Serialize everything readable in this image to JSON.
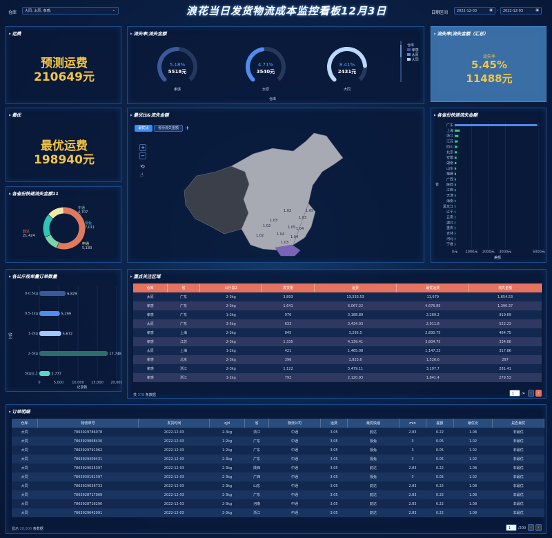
{
  "header": {
    "title": "浪花当日发货物流成本监控看板12月3日",
    "warehouse_label": "仓库",
    "warehouse_value": "大同; 太原; 孝感;",
    "date_label": "日期区间",
    "date_start": "2022-12-03",
    "date_sep": "-",
    "date_end": "2022-12-03"
  },
  "freight": {
    "title": "运费",
    "label": "预测运费",
    "value": "210649元"
  },
  "optimal": {
    "title": "最优",
    "label": "最优运费",
    "value": "198940元"
  },
  "loss": {
    "title": "流失率|流失金额",
    "axis_title": "仓库",
    "legend": {
      "title": "仓库",
      "items": [
        "孝感",
        "太原",
        "大同"
      ]
    },
    "rings": [
      {
        "pct": "5.18%",
        "amount": "5518元",
        "name": "孝感",
        "value": 0.5
      },
      {
        "pct": "4.71%",
        "amount": "3540元",
        "name": "太原",
        "value": 0.46
      },
      {
        "pct": "8.41%",
        "amount": "2431元",
        "name": "大同",
        "value": 0.82
      }
    ]
  },
  "loss_total": {
    "title": "流失率|流失金额（汇总）",
    "label": "流失率",
    "rate": "5.45%",
    "amount": "11488元"
  },
  "map": {
    "title": "最优比&流失金额",
    "tab1": "最优比",
    "tab2": "省份流失金额",
    "tab_add": "+",
    "zoom_in": "+",
    "zoom_out": "−",
    "labels": [
      "1.02",
      "1.03",
      "1.02",
      "1.05",
      "1.04",
      "1.03",
      "1.02",
      "1.04",
      "1.05",
      "1.03",
      "1.04"
    ]
  },
  "province_bar": {
    "title": "各省份快递流失金额",
    "ylabel": "省",
    "xlabel": "差额"
  },
  "donut": {
    "title": "各省份快递流失金额11"
  },
  "weight": {
    "title": "各公斤段单量订单数量",
    "ylabel": "分段",
    "xlabel": "记录数"
  },
  "focus": {
    "title": "重点关注区域",
    "columns": [
      "仓库",
      "省",
      "公斤段2",
      "发货量",
      "运费",
      "最优运费",
      "流失金额"
    ],
    "rows": [
      [
        "太原",
        "广东",
        "2-3kg",
        "3,893",
        "13,333.53",
        "11,679",
        "1,654.53"
      ],
      [
        "孝感",
        "广东",
        "2-3kg",
        "1,641",
        "6,067.22",
        "4,676.85",
        "1,390.37"
      ],
      [
        "孝感",
        "广东",
        "1-2kg",
        "976",
        "3,188.89",
        "2,269.2",
        "919.69"
      ],
      [
        "太原",
        "广东",
        "3-5kg",
        "633",
        "3,434.03",
        "2,911.8",
        "522.23"
      ],
      [
        "孝感",
        "上海",
        "2-3kg",
        "845",
        "3,295.5",
        "2,830.75",
        "464.75"
      ],
      [
        "孝感",
        "江苏",
        "2-3kg",
        "1,335",
        "4,139.41",
        "3,804.75",
        "334.66"
      ],
      [
        "太原",
        "上海",
        "1-2kg",
        "421",
        "1,465.08",
        "1,147.23",
        "317.86"
      ],
      [
        "孝感",
        "北京",
        "2-3kg",
        "396",
        "1,823.6",
        "1,526.6",
        "297"
      ],
      [
        "孝感",
        "浙江",
        "2-3kg",
        "1,122",
        "3,479.11",
        "3,197.7",
        "281.41"
      ],
      [
        "孝感",
        "浙江",
        "1-2kg",
        "792",
        "2,120.93",
        "1,841.4",
        "279.53"
      ]
    ],
    "footer_pre": "共",
    "count": "378",
    "footer_post": "条数据",
    "page": "1",
    "page_total": "/4"
  },
  "orders": {
    "title": "订单明细",
    "columns": [
      "仓库",
      "物流单号",
      "发货时间",
      "qjd",
      "省",
      "物流公司",
      "运费",
      "最优快递",
      "min",
      "差额",
      "最优比",
      "是否最优"
    ],
    "rows": [
      [
        "大同",
        "7863929786078",
        "2022-12-03",
        "2-3kg",
        "浙江",
        "中通",
        "3.05",
        "韵达",
        "2.83",
        "0.22",
        "1.08",
        "非最优"
      ],
      [
        "大同",
        "7863929868430",
        "2022-12-03",
        "1-2kg",
        "广东",
        "中通",
        "3.05",
        "极兔",
        "3",
        "0.05",
        "1.02",
        "非最优"
      ],
      [
        "大同",
        "7863929791062",
        "2022-12-03",
        "1-2kg",
        "广东",
        "中通",
        "3.05",
        "极兔",
        "3",
        "0.05",
        "1.02",
        "非最优"
      ],
      [
        "大同",
        "7863929409431",
        "2022-12-03",
        "2-3kg",
        "广东",
        "中通",
        "3.05",
        "极兔",
        "3",
        "0.05",
        "1.02",
        "非最优"
      ],
      [
        "大同",
        "7863929025397",
        "2022-12-03",
        "2-3kg",
        "陕西",
        "中通",
        "3.05",
        "韵达",
        "2.83",
        "0.22",
        "1.08",
        "非最优"
      ],
      [
        "大同",
        "7863930161397",
        "2022-12-03",
        "2-3kg",
        "广西",
        "中通",
        "3.05",
        "极兔",
        "3",
        "0.05",
        "1.02",
        "非最优"
      ],
      [
        "大同",
        "7863929636733",
        "2022-12-03",
        "2-3kg",
        "山东",
        "中通",
        "3.05",
        "韵达",
        "2.83",
        "0.22",
        "1.08",
        "非最优"
      ],
      [
        "大同",
        "7863928717069",
        "2022-12-03",
        "2-3kg",
        "广东",
        "中通",
        "3.05",
        "韵达",
        "2.83",
        "0.22",
        "1.08",
        "非最优"
      ],
      [
        "大同",
        "7863928716290",
        "2022-12-03",
        "2-3kg",
        "河南",
        "中通",
        "3.05",
        "韵达",
        "2.83",
        "0.22",
        "1.08",
        "非最优"
      ],
      [
        "大同",
        "7863929642091",
        "2022-12-03",
        "2-3kg",
        "浙江",
        "中通",
        "3.05",
        "韵达",
        "2.83",
        "0.22",
        "1.08",
        "非最优"
      ]
    ],
    "footer_pre": "显示",
    "count": "20,000",
    "footer_post": "条数据",
    "page": "1",
    "page_total": "/200"
  },
  "chart_data": [
    {
      "type": "bar",
      "orientation": "horizontal",
      "title": "各省份快递流失金额",
      "xlabel": "差额",
      "ylabel": "省",
      "xlim": [
        0,
        5000
      ],
      "xticks": [
        "0元",
        "1000元",
        "2000元",
        "3000元",
        "5000元"
      ],
      "categories": [
        "广东",
        "上海",
        "浙江",
        "江苏",
        "四川",
        "北京",
        "安徽",
        "湖南",
        "山东",
        "福建",
        "广西",
        "陕西",
        "江西",
        "天津",
        "海南",
        "黑龙江",
        "辽宁",
        "云南",
        "湖北",
        "重庆",
        "吉林",
        "河北",
        "宁夏"
      ],
      "values": [
        4900,
        300,
        220,
        180,
        150,
        130,
        110,
        100,
        90,
        80,
        70,
        65,
        60,
        55,
        50,
        45,
        40,
        35,
        30,
        28,
        25,
        22,
        20
      ]
    },
    {
      "type": "pie",
      "title": "各省份快递流失金额11",
      "slices": [
        {
          "name": "韵达",
          "value": 21424,
          "label": "21,424",
          "color": "#e07a5f"
        },
        {
          "name": "中通",
          "value": 4707,
          "label": "4,707",
          "color": "#7bd3a8"
        },
        {
          "name": "极兔",
          "value": 7011,
          "label": "7,011",
          "color": "#2ec4b6"
        },
        {
          "name": "申通",
          "value": 5183,
          "label": "5,183",
          "color": "#f2e8a8"
        }
      ]
    },
    {
      "type": "bar",
      "orientation": "horizontal",
      "title": "各公斤段单量订单数量",
      "xlabel": "记录数",
      "ylabel": "分段",
      "xlim": [
        0,
        20000
      ],
      "xticks": [
        "0",
        "5,000",
        "10,000",
        "15,000",
        "20,000"
      ],
      "categories": [
        "0-0.5kg",
        "0.5-1kg",
        "1-2kg",
        "2-3kg",
        "3kg以上"
      ],
      "values": [
        6829,
        5299,
        5672,
        17748,
        2777
      ],
      "labels": [
        "6,829",
        "5,299",
        "5,672",
        "17,748",
        "2,777"
      ],
      "colors": [
        "#3a5a9a",
        "#4f8cf0",
        "#a0c8ff",
        "#2e6e6a",
        "#58d6c8"
      ]
    }
  ]
}
